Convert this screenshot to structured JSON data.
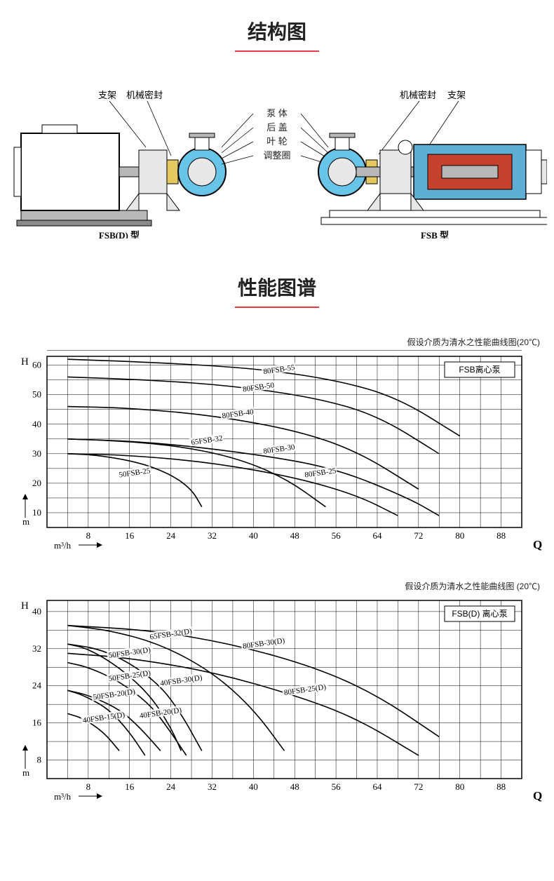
{
  "section1": {
    "title": "结构图",
    "labels_center": [
      "泵 体",
      "后 盖",
      "叶 轮",
      "调整圈"
    ],
    "labels_left": [
      "支架",
      "机械密封"
    ],
    "labels_right": [
      "机械密封",
      "支架"
    ],
    "model_left": "FSB(D) 型",
    "model_right": "FSB 型"
  },
  "section2": {
    "title": "性能图谱"
  },
  "chart1": {
    "caption": "假设介质为清水之性能曲线图(20℃)",
    "box_label": "FSB离心泵",
    "y_axis": {
      "label": "H",
      "unit": "m",
      "ticks": [
        10,
        20,
        30,
        40,
        50,
        60
      ]
    },
    "x_axis": {
      "label": "Q",
      "unit": "m³/h",
      "ticks": [
        8,
        16,
        24,
        32,
        40,
        48,
        56,
        64,
        72,
        80,
        88
      ]
    },
    "grid_color": "#000",
    "curves": [
      {
        "name": "80FSB-55",
        "pts": [
          [
            4,
            62
          ],
          [
            20,
            61
          ],
          [
            40,
            59
          ],
          [
            56,
            55
          ],
          [
            68,
            49
          ],
          [
            80,
            36
          ]
        ]
      },
      {
        "name": "80FSB-50",
        "pts": [
          [
            4,
            56
          ],
          [
            20,
            55
          ],
          [
            36,
            53
          ],
          [
            52,
            49
          ],
          [
            64,
            43
          ],
          [
            76,
            30
          ]
        ]
      },
      {
        "name": "80FSB-40",
        "pts": [
          [
            4,
            46
          ],
          [
            16,
            45.5
          ],
          [
            32,
            43
          ],
          [
            48,
            38
          ],
          [
            60,
            31
          ],
          [
            72,
            18
          ]
        ]
      },
      {
        "name": "80FSB-30",
        "pts": [
          [
            4,
            35
          ],
          [
            20,
            34
          ],
          [
            40,
            30
          ],
          [
            56,
            25
          ],
          [
            70,
            15
          ],
          [
            76,
            9
          ]
        ]
      },
      {
        "name": "65FSB-32",
        "pts": [
          [
            4,
            35
          ],
          [
            12,
            34.5
          ],
          [
            24,
            33
          ],
          [
            36,
            29
          ],
          [
            46,
            22
          ],
          [
            54,
            12
          ]
        ]
      },
      {
        "name": "80FSB-25",
        "pts": [
          [
            4,
            30
          ],
          [
            16,
            29.5
          ],
          [
            32,
            27
          ],
          [
            48,
            22
          ],
          [
            60,
            16
          ],
          [
            68,
            9
          ]
        ]
      },
      {
        "name": "50FSB-25",
        "pts": [
          [
            4,
            30
          ],
          [
            10,
            29.5
          ],
          [
            18,
            27
          ],
          [
            24,
            23
          ],
          [
            28,
            18
          ],
          [
            30,
            12
          ]
        ]
      }
    ],
    "curve_labels": [
      {
        "text": "80FSB-55",
        "x": 42,
        "y": 57
      },
      {
        "text": "80FSB-50",
        "x": 38,
        "y": 51
      },
      {
        "text": "80FSB-40",
        "x": 34,
        "y": 42
      },
      {
        "text": "80FSB-30",
        "x": 42,
        "y": 30
      },
      {
        "text": "65FSB-32",
        "x": 28,
        "y": 33
      },
      {
        "text": "80FSB-25",
        "x": 50,
        "y": 22
      },
      {
        "text": "50FSB-25",
        "x": 14,
        "y": 22
      }
    ]
  },
  "chart2": {
    "caption": "假设介质为清水之性能曲线图 (20℃)",
    "box_label": "FSB(D) 离心泵",
    "y_axis": {
      "label": "H",
      "unit": "m",
      "ticks": [
        8,
        16,
        24,
        32,
        40
      ]
    },
    "x_axis": {
      "label": "Q",
      "unit": "m³/h",
      "ticks": [
        8,
        16,
        24,
        32,
        40,
        48,
        56,
        64,
        72,
        80,
        88
      ]
    },
    "grid_color": "#000",
    "curves": [
      {
        "name": "80FSB-30(D)",
        "pts": [
          [
            4,
            37
          ],
          [
            20,
            36
          ],
          [
            36,
            33
          ],
          [
            52,
            28
          ],
          [
            64,
            22
          ],
          [
            76,
            13
          ]
        ]
      },
      {
        "name": "80FSB-25(D)",
        "pts": [
          [
            4,
            31
          ],
          [
            16,
            30
          ],
          [
            32,
            27
          ],
          [
            48,
            22
          ],
          [
            60,
            17
          ],
          [
            72,
            9
          ]
        ]
      },
      {
        "name": "65FSB-32(D)",
        "pts": [
          [
            4,
            37
          ],
          [
            12,
            36
          ],
          [
            22,
            33
          ],
          [
            32,
            27
          ],
          [
            40,
            19
          ],
          [
            46,
            10
          ]
        ]
      },
      {
        "name": "50FSB-30(D)",
        "pts": [
          [
            4,
            33
          ],
          [
            10,
            32
          ],
          [
            16,
            29
          ],
          [
            22,
            24
          ],
          [
            26,
            18
          ],
          [
            30,
            10
          ]
        ]
      },
      {
        "name": "40FSB-30(D)",
        "pts": [
          [
            4,
            33
          ],
          [
            8,
            32
          ],
          [
            14,
            28
          ],
          [
            20,
            22
          ],
          [
            24,
            15
          ],
          [
            26,
            10
          ]
        ]
      },
      {
        "name": "50FSB-25(D)",
        "pts": [
          [
            4,
            29
          ],
          [
            8,
            28
          ],
          [
            14,
            25
          ],
          [
            20,
            20
          ],
          [
            24,
            14
          ],
          [
            27,
            9
          ]
        ]
      },
      {
        "name": "50FSB-20(D)",
        "pts": [
          [
            4,
            23
          ],
          [
            8,
            22
          ],
          [
            14,
            19
          ],
          [
            18,
            15
          ],
          [
            22,
            10
          ]
        ]
      },
      {
        "name": "40FSB-20(D)",
        "pts": [
          [
            4,
            23
          ],
          [
            7,
            22
          ],
          [
            12,
            19
          ],
          [
            16,
            14
          ],
          [
            19,
            9
          ]
        ]
      },
      {
        "name": "40FSB-15(D)",
        "pts": [
          [
            4,
            18
          ],
          [
            7,
            17
          ],
          [
            11,
            14
          ],
          [
            14,
            10
          ]
        ]
      }
    ],
    "curve_labels": [
      {
        "text": "80FSB-30(D)",
        "x": 38,
        "y": 32
      },
      {
        "text": "80FSB-25(D)",
        "x": 46,
        "y": 22
      },
      {
        "text": "65FSB-32(D)",
        "x": 20,
        "y": 34
      },
      {
        "text": "50FSB-30(D)",
        "x": 12,
        "y": 30
      },
      {
        "text": "40FSB-30(D)",
        "x": 22,
        "y": 24
      },
      {
        "text": "50FSB-25(D)",
        "x": 12,
        "y": 25
      },
      {
        "text": "50FSB-20(D)",
        "x": 9,
        "y": 21
      },
      {
        "text": "40FSB-20(D)",
        "x": 18,
        "y": 17
      },
      {
        "text": "40FSB-15(D)",
        "x": 7,
        "y": 16
      }
    ]
  },
  "colors": {
    "accent": "#e53945",
    "stroke": "#000000",
    "fluid": "#69c5e8",
    "metal_light": "#e8e8e8",
    "metal_mid": "#b8b8b8",
    "metal_dark": "#8a8a8a",
    "motor_copper": "#c4412e",
    "motor_case": "#5faed4",
    "seal_yellow": "#e4c860"
  }
}
